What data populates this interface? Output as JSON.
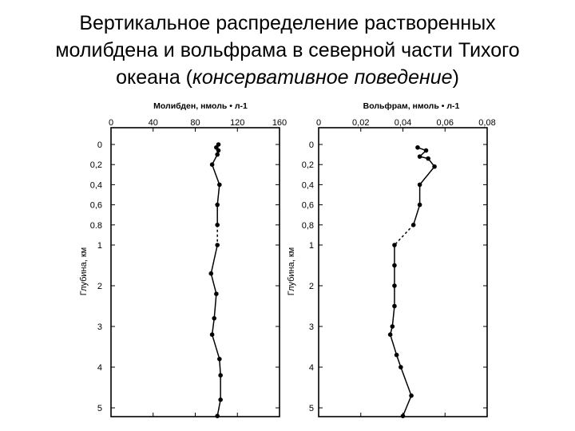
{
  "title": {
    "line1": "Вертикальное распределение растворенных",
    "line2": "молибдена и вольфрама в северной части Тихого",
    "line3_a": "океана (",
    "line3_b": "консервативное поведение",
    "line3_c": ")"
  },
  "chart_data": [
    {
      "type": "line",
      "xlabel": "Молибден, нмоль • л-1",
      "ylabel": "Глубина, км",
      "xlim": [
        0,
        160
      ],
      "x_ticks": [
        "0",
        "40",
        "80",
        "120",
        "160"
      ],
      "y_ticks": [
        "0",
        "0,2",
        "0,4",
        "0,6",
        "0.8",
        "1",
        "2",
        "3",
        "4",
        "5"
      ],
      "y_scale": "piecewise: 0–1 km expanded, 1–5 km linear",
      "series": [
        {
          "points": [
            {
              "x": 102,
              "y": 0.0
            },
            {
              "x": 100,
              "y": 0.03
            },
            {
              "x": 102,
              "y": 0.06
            },
            {
              "x": 101,
              "y": 0.1
            },
            {
              "x": 96,
              "y": 0.2
            },
            {
              "x": 103,
              "y": 0.4
            },
            {
              "x": 101,
              "y": 0.6
            },
            {
              "x": 101,
              "y": 0.8
            },
            {
              "x": 101,
              "y": 1.0
            },
            {
              "x": 95,
              "y": 1.7
            },
            {
              "x": 100,
              "y": 2.2
            },
            {
              "x": 98,
              "y": 2.8
            },
            {
              "x": 96,
              "y": 3.2
            },
            {
              "x": 103,
              "y": 3.8
            },
            {
              "x": 104,
              "y": 4.2
            },
            {
              "x": 104,
              "y": 4.8
            },
            {
              "x": 101,
              "y": 5.2
            }
          ],
          "dashed_segment_depth_km": [
            0.8,
            1.0
          ]
        }
      ]
    },
    {
      "type": "line",
      "xlabel": "Вольфрам, нмоль • л-1",
      "ylabel": "Глубина, км",
      "xlim": [
        0,
        0.08
      ],
      "x_ticks": [
        "0",
        "0,02",
        "0,04",
        "0,06",
        "0,08"
      ],
      "y_ticks": [
        "0",
        "0,2",
        "0,4",
        "0,6",
        "0,8",
        "1",
        "2",
        "3",
        "4",
        "5"
      ],
      "y_scale": "piecewise: 0–1 km expanded, 1–5 km linear",
      "series": [
        {
          "points": [
            {
              "x": 0.047,
              "y": 0.03
            },
            {
              "x": 0.051,
              "y": 0.06
            },
            {
              "x": 0.048,
              "y": 0.12
            },
            {
              "x": 0.052,
              "y": 0.14
            },
            {
              "x": 0.055,
              "y": 0.22
            },
            {
              "x": 0.048,
              "y": 0.4
            },
            {
              "x": 0.048,
              "y": 0.6
            },
            {
              "x": 0.045,
              "y": 0.8
            },
            {
              "x": 0.036,
              "y": 1.0
            },
            {
              "x": 0.036,
              "y": 1.5
            },
            {
              "x": 0.036,
              "y": 2.0
            },
            {
              "x": 0.036,
              "y": 2.5
            },
            {
              "x": 0.035,
              "y": 3.0
            },
            {
              "x": 0.034,
              "y": 3.2
            },
            {
              "x": 0.037,
              "y": 3.7
            },
            {
              "x": 0.039,
              "y": 4.0
            },
            {
              "x": 0.044,
              "y": 4.7
            },
            {
              "x": 0.04,
              "y": 5.2
            }
          ],
          "dashed_segment_depth_km": [
            0.8,
            1.0
          ]
        }
      ]
    }
  ]
}
